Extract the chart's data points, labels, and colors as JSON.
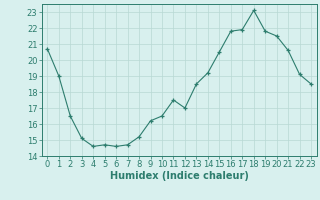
{
  "x": [
    0,
    1,
    2,
    3,
    4,
    5,
    6,
    7,
    8,
    9,
    10,
    11,
    12,
    13,
    14,
    15,
    16,
    17,
    18,
    19,
    20,
    21,
    22,
    23
  ],
  "y": [
    20.7,
    19.0,
    16.5,
    15.1,
    14.6,
    14.7,
    14.6,
    14.7,
    15.2,
    16.2,
    16.5,
    17.5,
    17.0,
    18.5,
    19.2,
    20.5,
    21.8,
    21.9,
    23.1,
    21.8,
    21.5,
    20.6,
    19.1,
    18.5
  ],
  "line_color": "#2d7d6e",
  "marker": "+",
  "marker_size": 3,
  "bg_color": "#d8f0ee",
  "grid_color": "#b8d8d4",
  "xlabel": "Humidex (Indice chaleur)",
  "ylim": [
    14,
    23.5
  ],
  "yticks": [
    14,
    15,
    16,
    17,
    18,
    19,
    20,
    21,
    22,
    23
  ],
  "xticks": [
    0,
    1,
    2,
    3,
    4,
    5,
    6,
    7,
    8,
    9,
    10,
    11,
    12,
    13,
    14,
    15,
    16,
    17,
    18,
    19,
    20,
    21,
    22,
    23
  ],
  "tick_color": "#2d7d6e",
  "label_fontsize": 7,
  "tick_fontsize": 6
}
